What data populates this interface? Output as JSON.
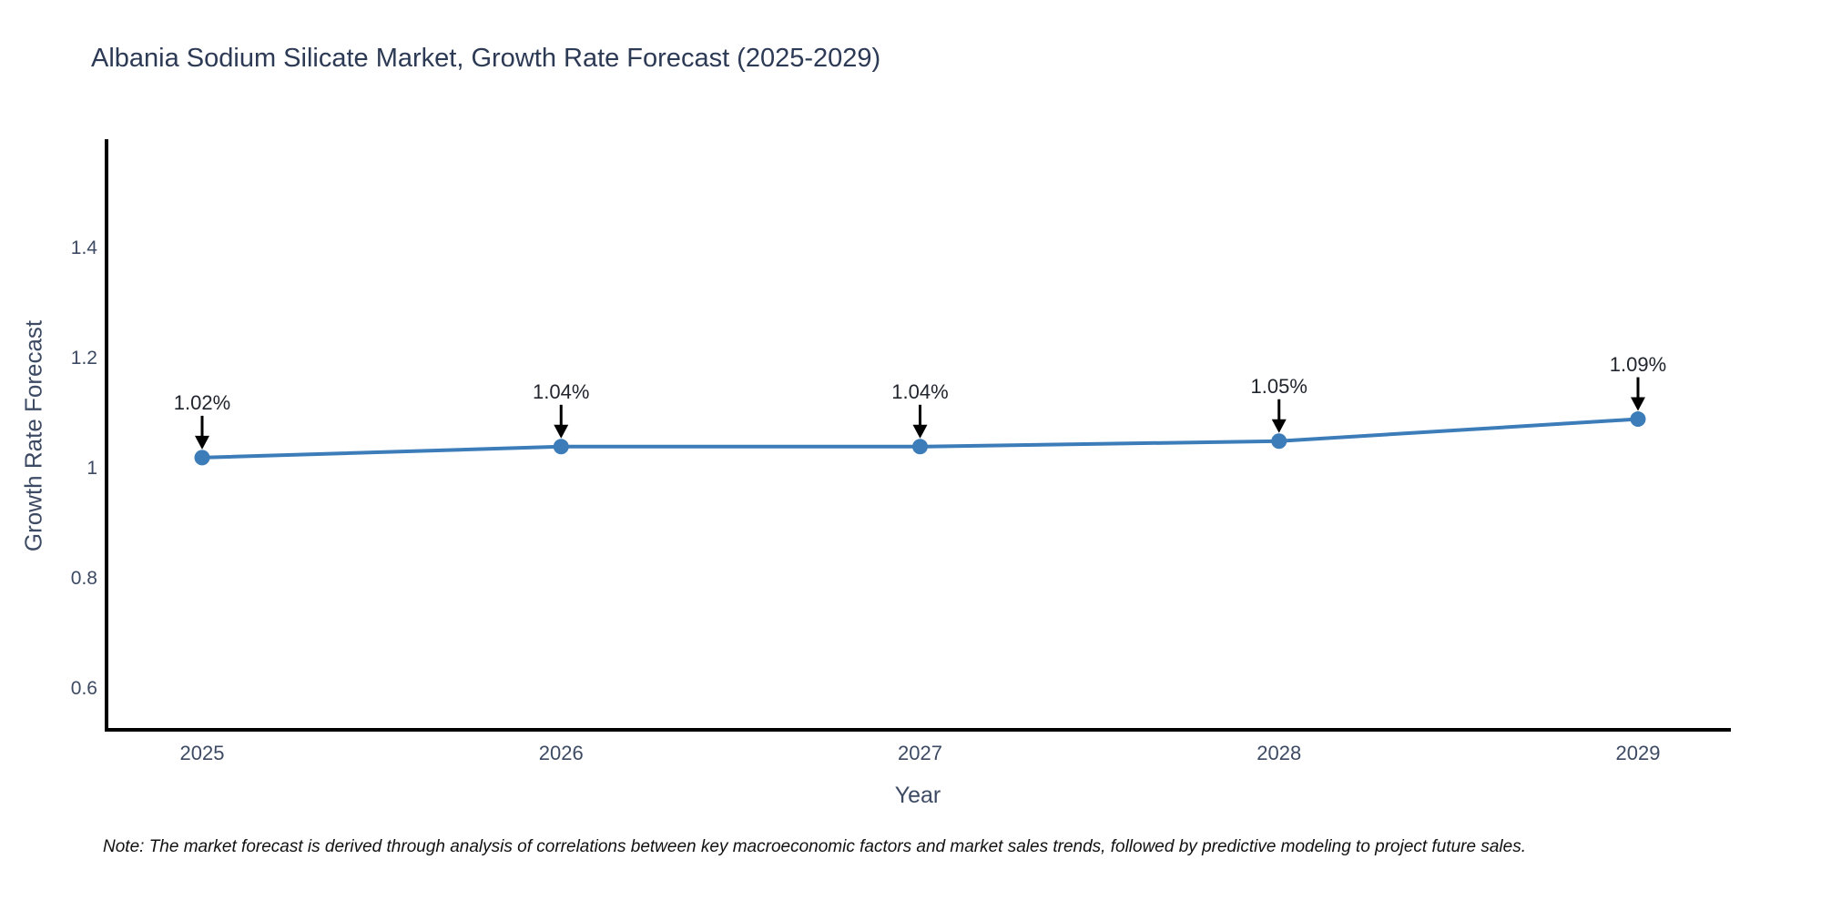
{
  "chart_data": {
    "type": "line",
    "title": "Albania Sodium Silicate Market, Growth Rate Forecast (2025-2029)",
    "xlabel": "Year",
    "ylabel": "Growth Rate Forecast",
    "categories": [
      "2025",
      "2026",
      "2027",
      "2028",
      "2029"
    ],
    "series": [
      {
        "name": "Growth Rate Forecast",
        "values": [
          1.02,
          1.04,
          1.04,
          1.05,
          1.09
        ],
        "point_labels": [
          "1.02%",
          "1.04%",
          "1.04%",
          "1.05%",
          "1.09%"
        ]
      }
    ],
    "yticks": [
      0.6,
      0.8,
      1,
      1.2,
      1.4
    ],
    "ytick_labels": [
      "0.6",
      "0.8",
      "1",
      "1.2",
      "1.4"
    ],
    "ylim": [
      0.53,
      1.6
    ],
    "grid": false,
    "legend_position": "none",
    "annotations_style": "value labels with downward black arrows pointing at each marker"
  },
  "note": {
    "text": "Note: The market forecast is derived through analysis of correlations between key macroeconomic factors and market sales trends, followed by predictive modeling to project future sales."
  },
  "colors": {
    "line": "#3c7cb8",
    "marker": "#3c7cb8",
    "arrow": "#000000",
    "spine": "#000000",
    "title_text": "#2d3a55",
    "axis_text": "#3d4a63",
    "annotation_text": "#20242c",
    "note_text": "#111111",
    "background": "#ffffff"
  }
}
